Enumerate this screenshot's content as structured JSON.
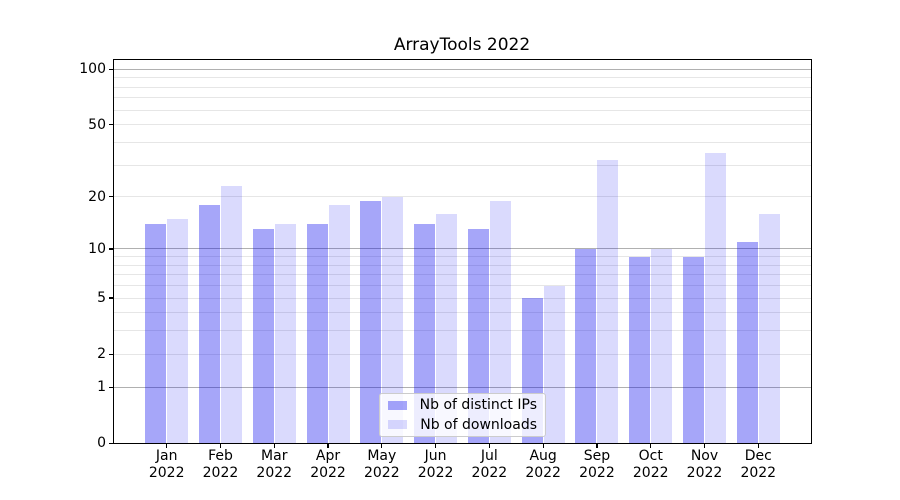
{
  "title": "ArrayTools 2022",
  "chart_data": {
    "type": "bar",
    "title": "ArrayTools 2022",
    "categories": [
      "Jan",
      "Feb",
      "Mar",
      "Apr",
      "May",
      "Jun",
      "Jul",
      "Aug",
      "Sep",
      "Oct",
      "Nov",
      "Dec"
    ],
    "category_year": "2022",
    "series": [
      {
        "name": "Nb of distinct IPs",
        "color": "rgba(0,0,238,0.35)",
        "values": [
          14,
          18,
          13,
          14,
          19,
          14,
          13,
          5,
          10,
          9,
          9,
          11
        ]
      },
      {
        "name": "Nb of downloads",
        "color": "rgba(0,0,238,0.145)",
        "values": [
          15,
          23,
          14,
          18,
          20,
          16,
          19,
          6,
          32,
          10,
          35,
          16
        ]
      }
    ],
    "yscale": "log1p",
    "ylim": [
      0,
      113
    ],
    "yticks": [
      0,
      1,
      2,
      5,
      10,
      20,
      50,
      100
    ],
    "grid": {
      "major_values": [
        1,
        10,
        100
      ],
      "minor_values": [
        2,
        3,
        4,
        5,
        6,
        7,
        8,
        9,
        20,
        30,
        40,
        50,
        60,
        70,
        80,
        90
      ],
      "major_color": "#b0b0b0",
      "minor_color": "#e6e6e6"
    },
    "legend_position": "lower center"
  },
  "colors": {
    "bar_distinct_ips": "rgba(0,0,238,0.35)",
    "bar_downloads": "rgba(0,0,238,0.145)",
    "spine": "#000000",
    "text": "#000000"
  }
}
